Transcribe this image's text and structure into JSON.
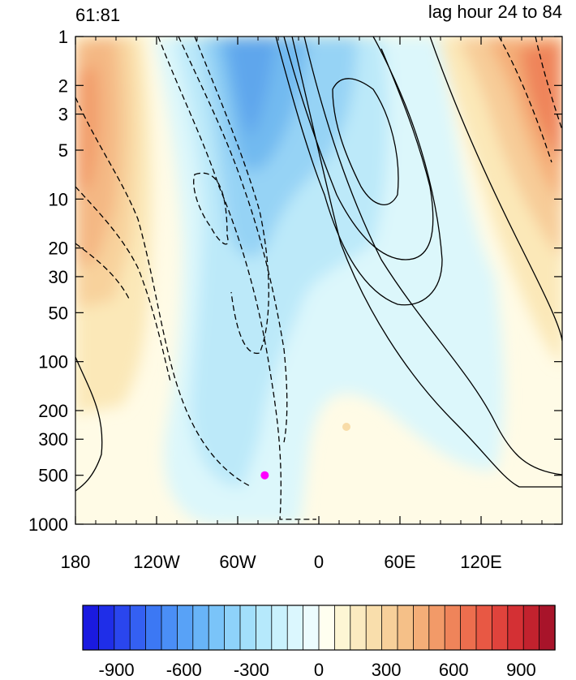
{
  "chart_data": {
    "type": "contour",
    "title_left": "61:81",
    "title_right": "lag hour 24 to 84",
    "x_axis": {
      "range": [
        -180,
        180
      ],
      "ticks": [
        {
          "value": -180,
          "label": "180"
        },
        {
          "value": -120,
          "label": "120W"
        },
        {
          "value": -60,
          "label": "60W"
        },
        {
          "value": 0,
          "label": "0"
        },
        {
          "value": 60,
          "label": "60E"
        },
        {
          "value": 120,
          "label": "120E"
        }
      ]
    },
    "y_axis": {
      "scale": "log",
      "reversed": true,
      "range": [
        1,
        1000
      ],
      "ticks": [
        {
          "value": 1,
          "label": "1"
        },
        {
          "value": 2,
          "label": "2"
        },
        {
          "value": 3,
          "label": "3"
        },
        {
          "value": 5,
          "label": "5"
        },
        {
          "value": 10,
          "label": "10"
        },
        {
          "value": 20,
          "label": "20"
        },
        {
          "value": 30,
          "label": "30"
        },
        {
          "value": 50,
          "label": "50"
        },
        {
          "value": 100,
          "label": "100"
        },
        {
          "value": 200,
          "label": "200"
        },
        {
          "value": 300,
          "label": "300"
        },
        {
          "value": 500,
          "label": "500"
        },
        {
          "value": 1000,
          "label": "1000"
        }
      ]
    },
    "colorbar": {
      "range": [
        -1050,
        1050
      ],
      "levels": 30,
      "colors": [
        "#1a1ae0",
        "#1f2ee8",
        "#2a46ee",
        "#3460f2",
        "#3c78f4",
        "#4a8ef6",
        "#58a2f7",
        "#68b4f8",
        "#7ac4f9",
        "#8ed2fa",
        "#a2dffb",
        "#b6e9fc",
        "#c9f1fd",
        "#dbf7fe",
        "#ecfcfe",
        "#fffff0",
        "#fdf6d4",
        "#fbeac0",
        "#f9deac",
        "#f7d09a",
        "#f5c088",
        "#f4ae78",
        "#f29a68",
        "#ef845a",
        "#ec6e4e",
        "#e85844",
        "#e0433c",
        "#d43034",
        "#c2222e",
        "#a8142a"
      ],
      "ticks": [
        {
          "value": -900,
          "label": "-900"
        },
        {
          "value": -600,
          "label": "-600"
        },
        {
          "value": -300,
          "label": "-300"
        },
        {
          "value": 0,
          "label": "0"
        },
        {
          "value": 300,
          "label": "300"
        },
        {
          "value": 600,
          "label": "600"
        },
        {
          "value": 900,
          "label": "900"
        }
      ]
    },
    "marker": {
      "lon": -40,
      "p": 500,
      "color": "#ff00ff"
    }
  }
}
